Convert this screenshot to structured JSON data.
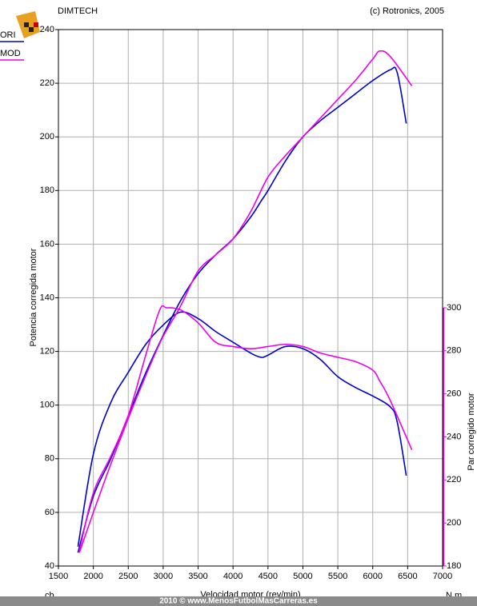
{
  "chart_data": {
    "type": "line",
    "title": "DIMTECH",
    "copyright": "(c) Rotronics, 2005",
    "x_label": "Velocidad motor (rev/min)",
    "y_label": "Potencia corregida motor",
    "y2_label": "Par corregido motor",
    "y_unit": "cb",
    "y2_unit": "N.m",
    "footer": "2010 © www.MenosFutbolMasCarreras.es",
    "xlim": [
      1500,
      7000
    ],
    "xticks": [
      1500,
      2000,
      2500,
      3000,
      3500,
      4000,
      4500,
      5000,
      5500,
      6000,
      6500,
      7000
    ],
    "ylim": [
      40,
      240
    ],
    "yticks": [
      40,
      60,
      80,
      100,
      120,
      140,
      160,
      180,
      200,
      220,
      240
    ],
    "y2lim": [
      180,
      300
    ],
    "y2ticks": [
      180,
      200,
      220,
      240,
      260,
      280,
      300
    ],
    "y2_axis_color": "#ee00ee",
    "grid": true,
    "series": [
      {
        "name": "ORI",
        "color": "#0000cc",
        "x": [
          1780,
          2000,
          2250,
          2500,
          2750,
          3000,
          3250,
          3500,
          3750,
          4000,
          4250,
          4400,
          4500,
          4750,
          5000,
          5250,
          5500,
          5750,
          6000,
          6250,
          6350,
          6480
        ],
        "values": [
          45,
          66,
          80,
          96,
          112,
          126,
          139,
          149,
          156,
          162,
          170,
          176,
          180,
          191,
          200,
          206,
          211,
          216,
          221,
          225,
          224,
          205
        ],
        "y2_values": [
          189,
          232,
          256,
          270,
          283,
          292,
          298,
          295,
          289,
          284,
          279,
          277,
          278,
          282,
          281,
          276,
          268,
          263,
          259,
          254,
          247,
          222
        ]
      },
      {
        "name": "MOD",
        "color": "#ee00ee",
        "x": [
          1800,
          2000,
          2250,
          2500,
          2750,
          2950,
          3050,
          3250,
          3500,
          3750,
          4000,
          4250,
          4500,
          4750,
          5000,
          5250,
          5500,
          5750,
          6000,
          6100,
          6250,
          6560
        ],
        "values": [
          45,
          60,
          78,
          95,
          111,
          123,
          128,
          137,
          150,
          156,
          162,
          172,
          185,
          193,
          200,
          207,
          214,
          221,
          229,
          232,
          230,
          219
        ],
        "y2_values": [
          187,
          214,
          231,
          250,
          278,
          299,
          300,
          299,
          293,
          284,
          282,
          281,
          282,
          283,
          282,
          279,
          277,
          275,
          271,
          266,
          257,
          234
        ]
      }
    ]
  }
}
